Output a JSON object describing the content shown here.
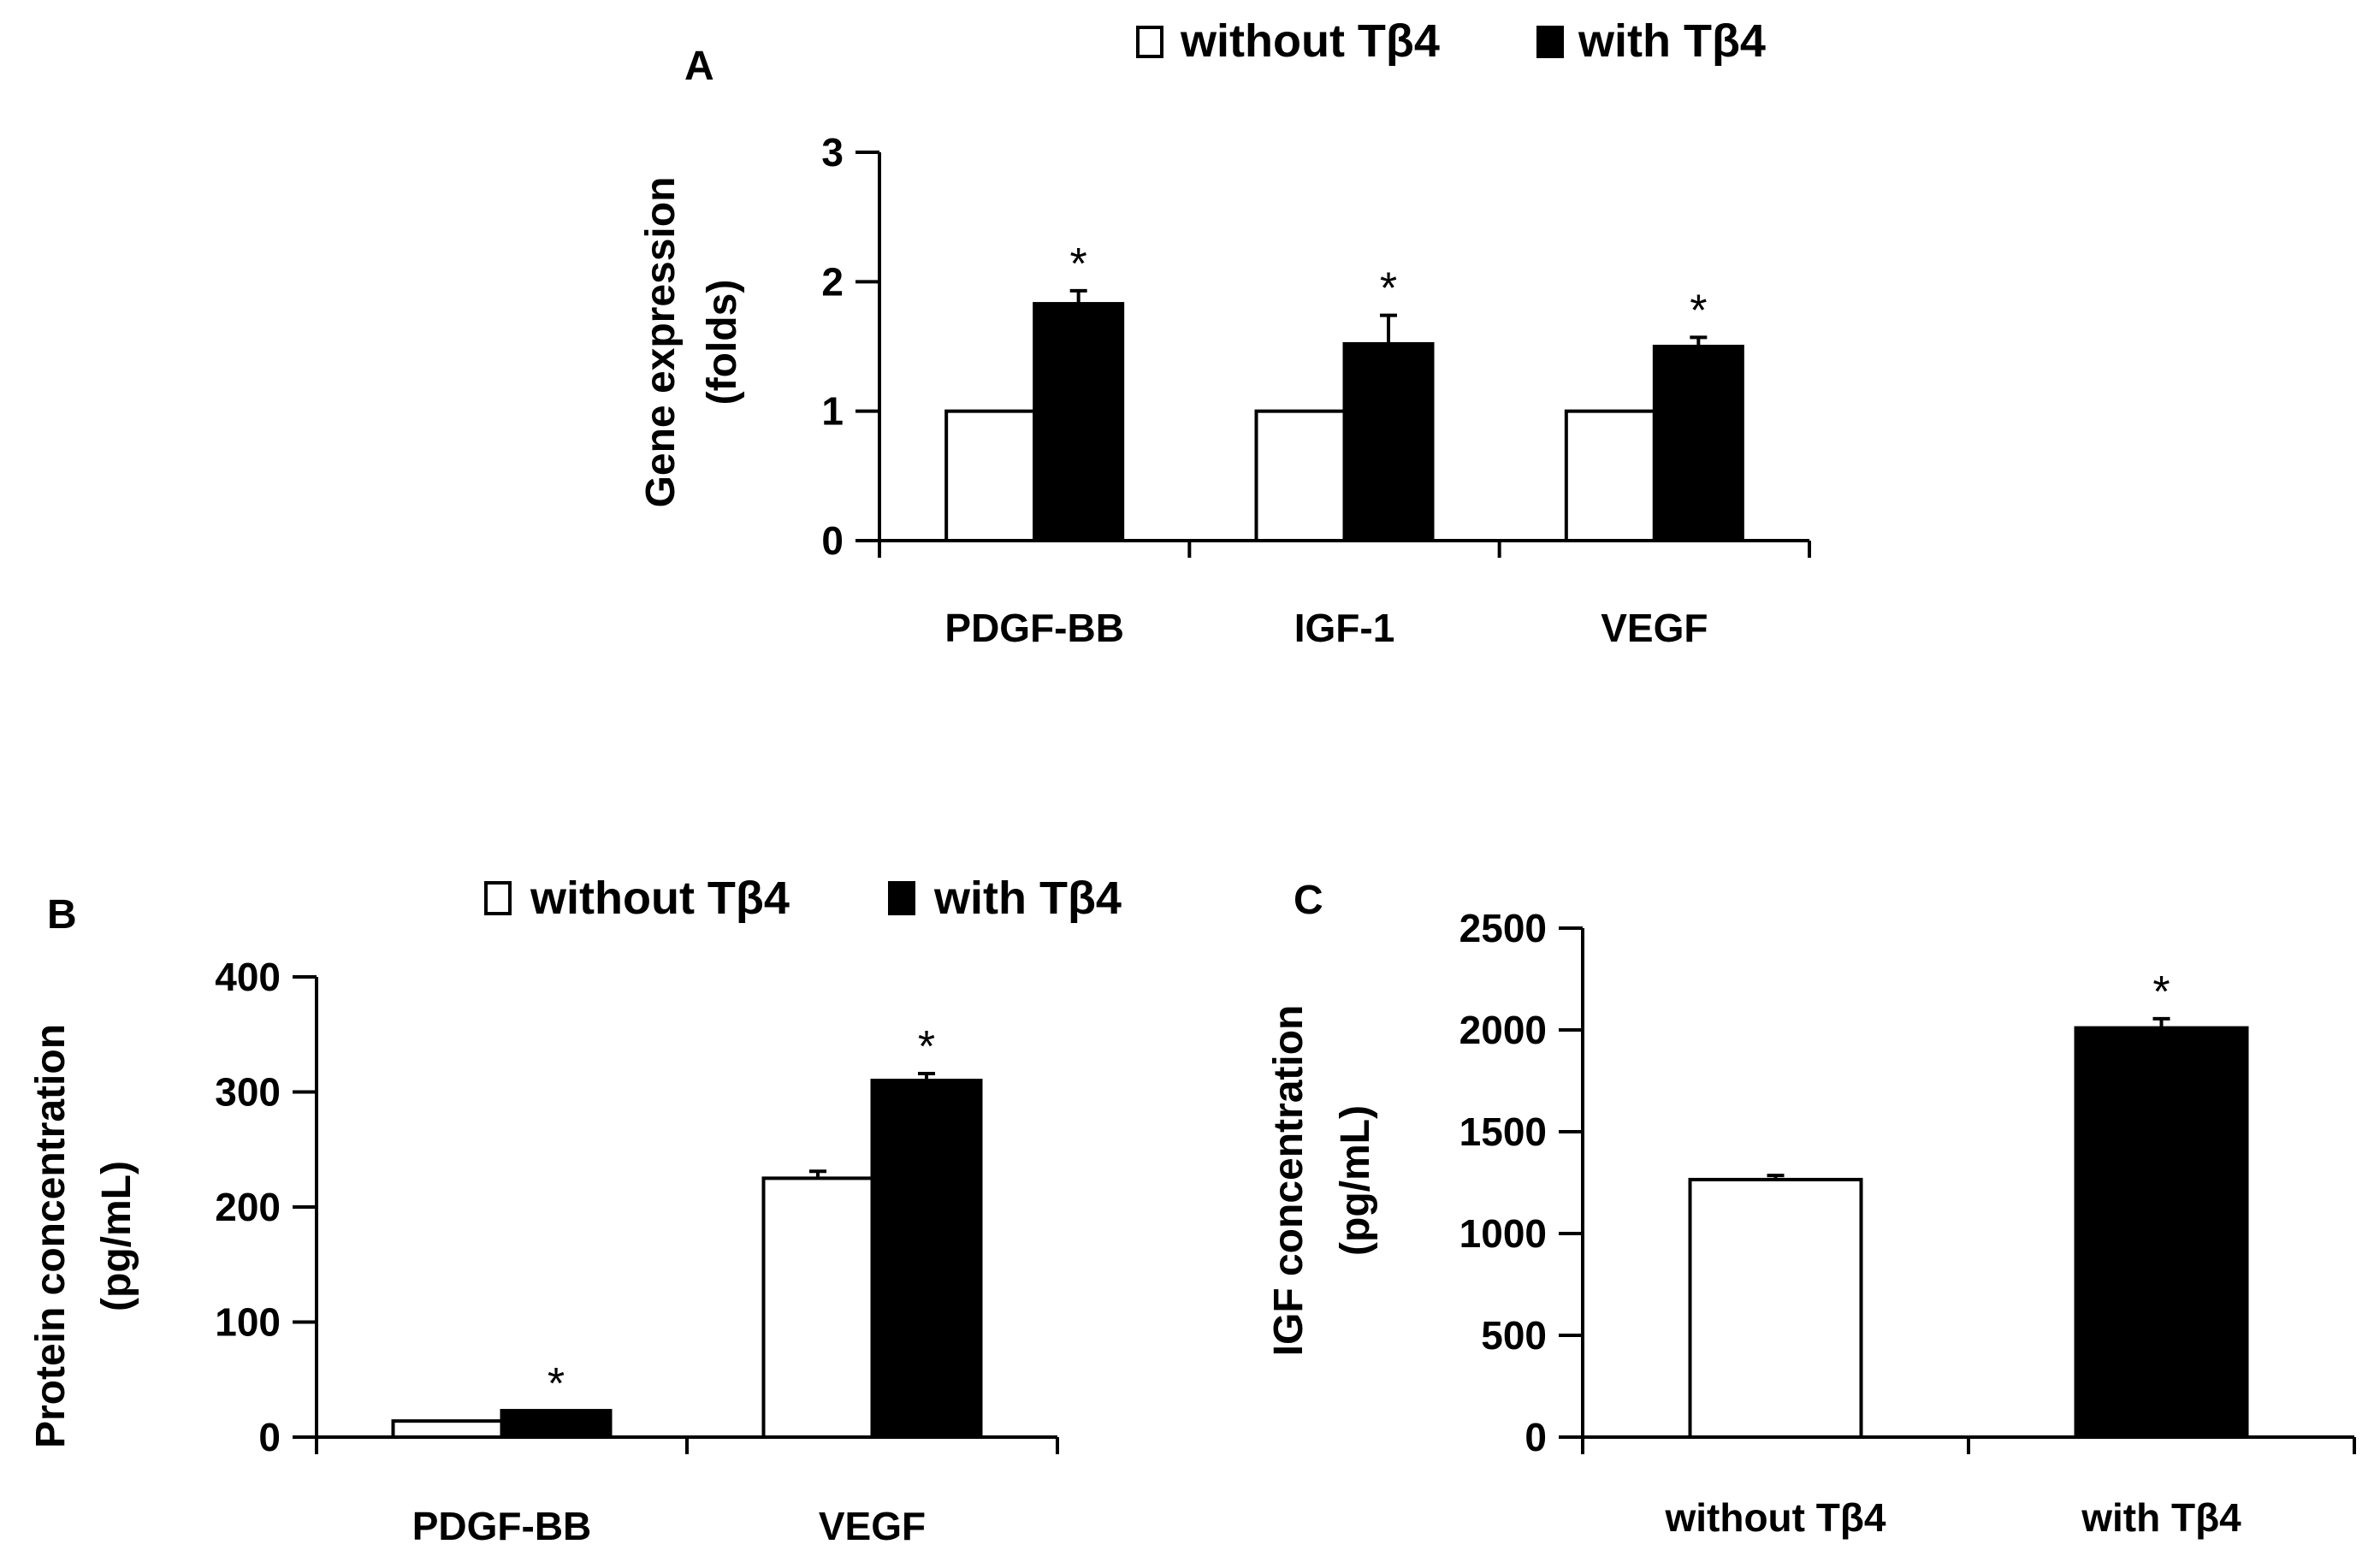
{
  "legend": {
    "without_label": "without Tβ4",
    "with_label": "with Tβ4"
  },
  "colors": {
    "without": "#ffffff",
    "with": "#000000",
    "axis": "#000000"
  },
  "chart_data": [
    {
      "panel": "A",
      "type": "bar",
      "ylabel_line1": "Gene expression",
      "ylabel_line2": "(folds)",
      "xlabel": "",
      "ylim": [
        0,
        3
      ],
      "yticks": [
        0,
        1,
        2,
        3
      ],
      "categories": [
        "PDGF-BB",
        "IGF-1",
        "VEGF"
      ],
      "series": [
        {
          "name": "without Tβ4",
          "values": [
            1,
            1,
            1
          ],
          "errors": [
            0,
            0,
            0
          ]
        },
        {
          "name": "with Tβ4",
          "values": [
            1.83,
            1.52,
            1.5
          ],
          "errors": [
            0.1,
            0.22,
            0.07
          ]
        }
      ],
      "significance": [
        "*",
        "*",
        "*"
      ],
      "legend_position": "top-right"
    },
    {
      "panel": "B",
      "type": "bar",
      "ylabel_line1": "Protein concentration",
      "ylabel_line2": "(pg/mL)",
      "xlabel": "",
      "ylim": [
        0,
        400
      ],
      "yticks": [
        0,
        100,
        200,
        300,
        400
      ],
      "categories": [
        "PDGF-BB",
        "VEGF"
      ],
      "series": [
        {
          "name": "without Tβ4",
          "values": [
            14,
            225
          ],
          "errors": [
            0,
            6
          ]
        },
        {
          "name": "with Tβ4",
          "values": [
            23,
            310
          ],
          "errors": [
            0,
            6
          ]
        }
      ],
      "significance": [
        "*",
        "*"
      ],
      "legend_position": "top"
    },
    {
      "panel": "C",
      "type": "bar",
      "ylabel_line1": "IGF concentration",
      "ylabel_line2": "(pg/mL)",
      "xlabel": "",
      "ylim": [
        0,
        2500
      ],
      "yticks": [
        0,
        500,
        1000,
        1500,
        2000,
        2500
      ],
      "categories": [
        "without Tβ4",
        "with Tβ4"
      ],
      "series": [
        {
          "name": "IGF",
          "values": [
            1265,
            2010
          ],
          "errors": [
            20,
            45
          ]
        }
      ],
      "significance": [
        "",
        "*"
      ]
    }
  ]
}
